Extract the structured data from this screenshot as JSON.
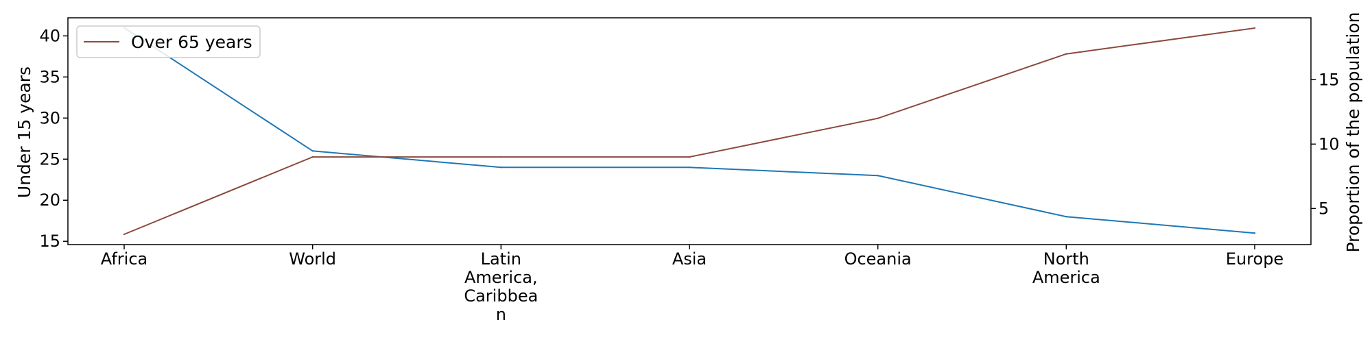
{
  "chart_data": {
    "type": "line",
    "categories": [
      [
        "Africa"
      ],
      [
        "World"
      ],
      [
        "Latin",
        "America,",
        "Caribbea",
        "n"
      ],
      [
        "Asia"
      ],
      [
        "Oceania"
      ],
      [
        "North",
        "America"
      ],
      [
        "Europe"
      ]
    ],
    "series": [
      {
        "axis": "left",
        "color": "#1f77b4",
        "values": [
          41,
          26,
          24,
          24,
          23,
          18,
          16
        ]
      },
      {
        "name": "Over 65 years",
        "axis": "right",
        "color": "#8c4a3e",
        "values": [
          3,
          9,
          9,
          9,
          12,
          17,
          19
        ]
      }
    ],
    "ylabel_left": "Under 15 years",
    "ylabel_right": "Proportion of the population",
    "yticks_left": [
      15,
      20,
      25,
      30,
      35,
      40
    ],
    "yticks_right": [
      5,
      10,
      15
    ],
    "ylim_left": [
      14.6,
      42.2
    ],
    "ylim_right": [
      2.2,
      19.8
    ],
    "legend": {
      "position": "top-left",
      "entries": [
        "Over 65 years"
      ]
    },
    "grid": false
  }
}
